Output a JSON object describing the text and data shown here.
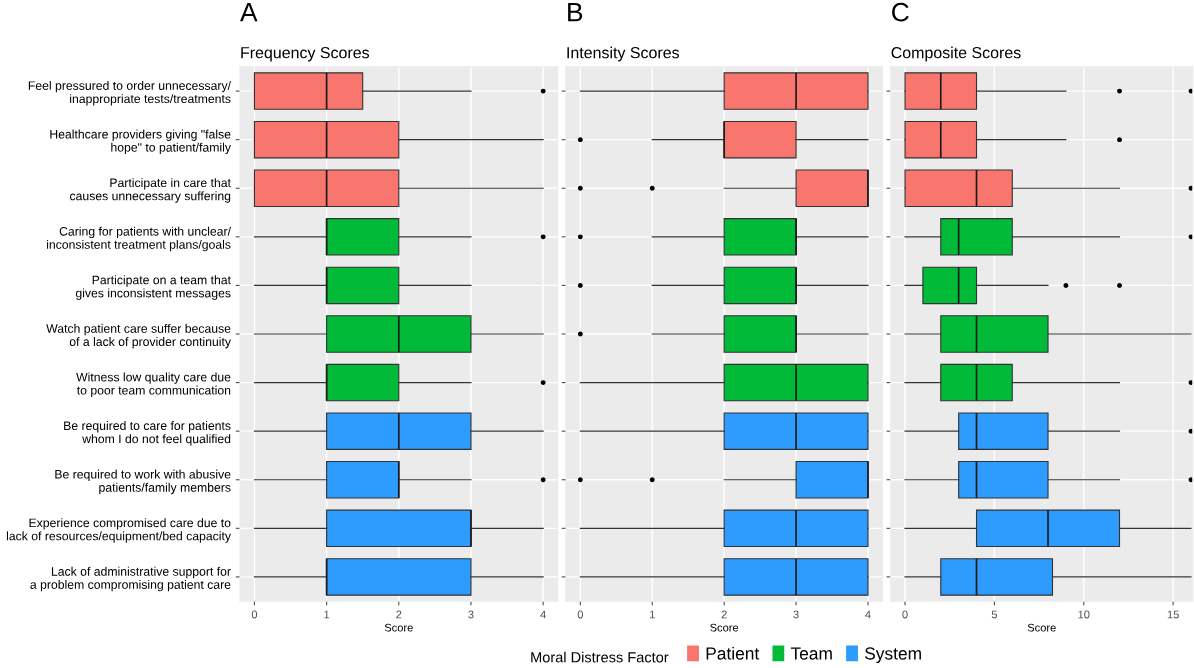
{
  "chart_data": [
    {
      "type": "box",
      "title": "A",
      "subtitle": "Frequency Scores",
      "xlabel": "Score",
      "orientation": "horizontal",
      "categories": [
        "Feel pressured to order unnecessary/\ninappropriate tests/treatments",
        "Healthcare providers giving \"false\nhope\" to patient/family",
        "Participate in care that\ncauses unnecessary suffering",
        "Caring for patients with unclear/\ninconsistent treatment plans/goals",
        "Participate on a team that\ngives inconsistent messages",
        "Watch patient care suffer because\nof a lack of provider continuity",
        "Witness low quality care due\nto poor team communication",
        "Be required to care for patients\nwhom I do not feel qualified",
        "Be required to work with abusive\npatients/family members",
        "Experience compromised care due to\nlack of resources/equipment/bed capacity",
        "Lack of administrative support for\na problem compromising patient care"
      ],
      "xlim": [
        -0.2,
        4.2
      ],
      "xticks": [
        0,
        1,
        2,
        3,
        4
      ],
      "grid": true,
      "legend": "bottom",
      "legend_title": "Moral Distress Factor",
      "series": [
        {
          "name": "Patient",
          "color": "#f8766d",
          "boxes": [
            {
              "low": 0,
              "q1": 0,
              "median": 1,
              "q3": 1.5,
              "high": 3,
              "outliers": [
                4
              ]
            },
            {
              "low": 0,
              "q1": 0,
              "median": 1,
              "q3": 2,
              "high": 4
            },
            {
              "low": 0,
              "q1": 0,
              "median": 1,
              "q3": 2,
              "high": 4
            },
            null,
            null,
            null,
            null,
            null,
            null,
            null,
            null
          ]
        },
        {
          "name": "Team",
          "color": "#00ba38",
          "boxes": [
            null,
            null,
            null,
            {
              "low": 0,
              "q1": 1,
              "median": 1,
              "q3": 2,
              "high": 3,
              "outliers": [
                4
              ]
            },
            {
              "low": 0,
              "q1": 1,
              "median": 1,
              "q3": 2,
              "high": 3
            },
            {
              "low": 0,
              "q1": 1,
              "median": 2,
              "q3": 3,
              "high": 4
            },
            {
              "low": 0,
              "q1": 1,
              "median": 1,
              "q3": 2,
              "high": 3,
              "outliers": [
                4
              ]
            },
            null,
            null,
            null,
            null
          ]
        },
        {
          "name": "System",
          "color": "#2e9bfe",
          "boxes": [
            null,
            null,
            null,
            null,
            null,
            null,
            null,
            {
              "low": 0,
              "q1": 1,
              "median": 2,
              "q3": 3,
              "high": 4
            },
            {
              "low": 0,
              "q1": 1,
              "median": 2,
              "q3": 2,
              "high": 3,
              "outliers": [
                4
              ]
            },
            {
              "low": 0,
              "q1": 1,
              "median": 3,
              "q3": 3,
              "high": 4
            },
            {
              "low": 0,
              "q1": 1,
              "median": 1,
              "q3": 3,
              "high": 4
            }
          ]
        }
      ]
    },
    {
      "type": "box",
      "title": "B",
      "subtitle": "Intensity Scores",
      "xlabel": "Score",
      "orientation": "horizontal",
      "tick_labels": "x",
      "categories": [
        null,
        null,
        null,
        null,
        null,
        null,
        null,
        null,
        null,
        null,
        null
      ],
      "xlim": [
        -0.2,
        4.2
      ],
      "xticks": [
        0,
        1,
        2,
        3,
        4
      ],
      "grid": true,
      "series": [
        {
          "color": "#f8766d",
          "boxes": [
            {
              "low": 0,
              "q1": 2,
              "median": 3,
              "q3": 4,
              "high": 4
            },
            {
              "low": 1,
              "q1": 2,
              "median": 2,
              "q3": 3,
              "high": 4,
              "outliers": [
                0
              ]
            },
            {
              "low": 2,
              "q1": 3,
              "median": 4,
              "q3": 4,
              "high": 4,
              "outliers": [
                0,
                1
              ]
            },
            null,
            null,
            null,
            null,
            null,
            null,
            null,
            null
          ]
        },
        {
          "color": "#00ba38",
          "boxes": [
            null,
            null,
            null,
            {
              "low": 1,
              "q1": 2,
              "median": 3,
              "q3": 3,
              "high": 4,
              "outliers": [
                0
              ]
            },
            {
              "low": 1,
              "q1": 2,
              "median": 3,
              "q3": 3,
              "high": 4,
              "outliers": [
                0
              ]
            },
            {
              "low": 1,
              "q1": 2,
              "median": 3,
              "q3": 3,
              "high": 4,
              "outliers": [
                0
              ]
            },
            {
              "low": 0,
              "q1": 2,
              "median": 3,
              "q3": 4,
              "high": 4
            },
            null,
            null,
            null,
            null
          ]
        },
        {
          "color": "#2e9bfe",
          "boxes": [
            null,
            null,
            null,
            null,
            null,
            null,
            null,
            {
              "low": 0,
              "q1": 2,
              "median": 3,
              "q3": 4,
              "high": 4
            },
            {
              "low": 2,
              "q1": 3,
              "median": 4,
              "q3": 4,
              "high": 4,
              "outliers": [
                0,
                1
              ]
            },
            {
              "low": 0,
              "q1": 2,
              "median": 3,
              "q3": 4,
              "high": 4
            },
            {
              "low": 0,
              "q1": 2,
              "median": 3,
              "q3": 4,
              "high": 4
            }
          ]
        }
      ]
    },
    {
      "type": "box",
      "title": "C",
      "subtitle": "Composite Scores",
      "xlabel": "Score",
      "orientation": "horizontal",
      "tick_labels": "x",
      "categories": [
        null,
        null,
        null,
        null,
        null,
        null,
        null,
        null,
        null,
        null,
        null
      ],
      "xlim": [
        -0.8,
        16.1
      ],
      "xticks": [
        0,
        5,
        10,
        15
      ],
      "grid": true,
      "series": [
        {
          "color": "#f8766d",
          "boxes": [
            {
              "low": 0,
              "q1": 0,
              "median": 2,
              "q3": 4,
              "high": 9,
              "outliers": [
                12,
                16
              ]
            },
            {
              "low": 0,
              "q1": 0,
              "median": 2,
              "q3": 4,
              "high": 9,
              "outliers": [
                12
              ]
            },
            {
              "low": 0,
              "q1": 0,
              "median": 4,
              "q3": 6,
              "high": 12,
              "outliers": [
                16
              ]
            },
            null,
            null,
            null,
            null,
            null,
            null,
            null,
            null
          ]
        },
        {
          "color": "#00ba38",
          "boxes": [
            null,
            null,
            null,
            {
              "low": 0,
              "q1": 2,
              "median": 3,
              "q3": 6,
              "high": 12,
              "outliers": [
                16
              ]
            },
            {
              "low": 0,
              "q1": 1,
              "median": 3,
              "q3": 4,
              "high": 8,
              "outliers": [
                9,
                12
              ]
            },
            {
              "low": 0,
              "q1": 2,
              "median": 4,
              "q3": 8,
              "high": 16
            },
            {
              "low": 0,
              "q1": 2,
              "median": 4,
              "q3": 6,
              "high": 12,
              "outliers": [
                16
              ]
            },
            null,
            null,
            null,
            null
          ]
        },
        {
          "color": "#2e9bfe",
          "boxes": [
            null,
            null,
            null,
            null,
            null,
            null,
            null,
            {
              "low": 0,
              "q1": 3,
              "median": 4,
              "q3": 8,
              "high": 12,
              "outliers": [
                16
              ]
            },
            {
              "low": 0,
              "q1": 3,
              "median": 4,
              "q3": 8,
              "high": 12,
              "outliers": [
                16
              ]
            },
            {
              "low": 0,
              "q1": 4,
              "median": 8,
              "q3": 12,
              "high": 16
            },
            {
              "low": 0,
              "q1": 2,
              "median": 4,
              "q3": 8.25,
              "high": 16
            }
          ]
        }
      ]
    }
  ]
}
